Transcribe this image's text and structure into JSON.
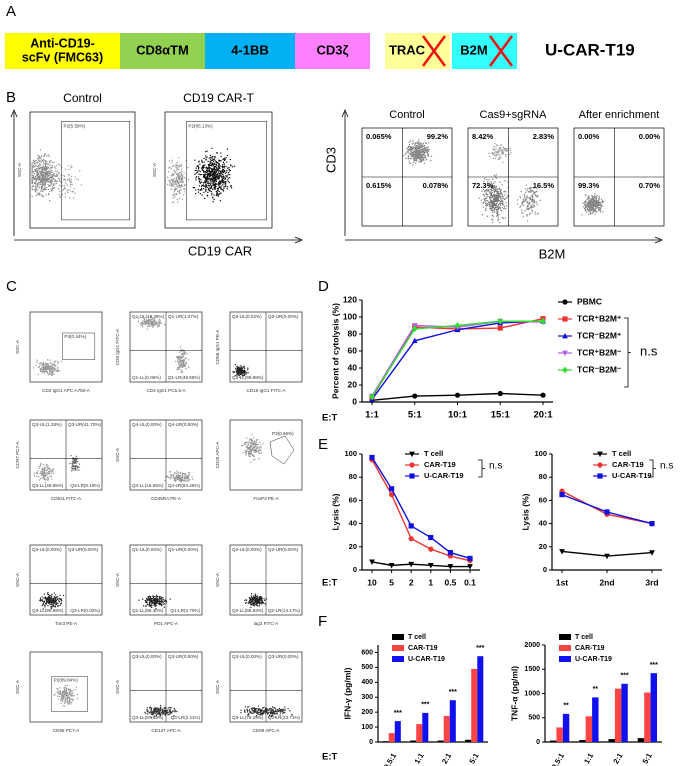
{
  "panels": {
    "A": {
      "label": "A",
      "construct": [
        [
          "Anti-CD19-",
          "scFv (FMC63)"
        ],
        "CD8αTM",
        "4-1BB",
        "CD3ζ"
      ],
      "knockout": [
        "TRAC",
        "B2M"
      ],
      "product": "U-CAR-T19"
    },
    "B": {
      "label": "B",
      "left": {
        "titles": [
          "Control",
          "CD19 CAR-T"
        ],
        "gates": [
          "P2(5.59%)",
          "P2(85.13%)"
        ],
        "ylabel": "SSC-A",
        "xlabel": "CD19 CAR"
      },
      "right": {
        "titles": [
          "Control",
          "Cas9+sgRNA",
          "After enrichment"
        ],
        "quadrants": [
          [
            "0.065%",
            "99.2%",
            "0.615%",
            "0.078%"
          ],
          [
            "8.42%",
            "2.83%",
            "72.3%",
            "16.5%"
          ],
          [
            "0.00%",
            "0.00%",
            "99.3%",
            "0.70%"
          ]
        ],
        "ylabel": "CD3",
        "xlabel": "B2M"
      }
    },
    "C": {
      "label": "C",
      "plots": [
        {
          "ylabel": "SSC-A",
          "xlabel": "CD3 IgG1 APC-A750-A",
          "gate": "P3(0.44%)"
        },
        {
          "ylabel": "CD8 IgG1 FITC-A",
          "xlabel": "CD4 IgG1 PC5.5-A",
          "quadrants": [
            "Q1-UL(49.36%)",
            "Q1-UR(1.07%)",
            "Q1-LL(0.06%)",
            "Q1-LR(48.58%)"
          ]
        },
        {
          "ylabel": "CD56 IgG1 PE-A",
          "xlabel": "CD19 IgG1 FITC-A",
          "quadrants": [
            "Q3-UL(0.02%)",
            "Q3-UR(0.00%)",
            "Q3-LL(99.98%)"
          ]
        },
        {
          "ylabel": "CCR7 PC7-A",
          "xlabel": "CD62L FITC-A",
          "quadrants": [
            "Q3-UL(1.28%)",
            "Q3-UR(41.70%)",
            "Q3-LL(48.85%)",
            "Q3-LR(8.18%)"
          ]
        },
        {
          "ylabel": "SSC-A",
          "xlabel": "CD45RA PE-A",
          "quadrants": [
            "Q4-UL(0.00%)",
            "Q4-UR(0.00%)",
            "Q4-LL(15.55%)",
            "Q4-LR(84.45%)"
          ]
        },
        {
          "ylabel": "CD25 APC-A",
          "xlabel": "FoxP3 PE-A",
          "gate": "P3(0.56%)"
        },
        {
          "ylabel": "SSC-A",
          "xlabel": "Tim3 PE-A",
          "quadrants": [
            "Q3-UL(0.00%)",
            "Q3-UR(0.00%)",
            "Q3-LL(99.98%)",
            "Q3-LR(0.02%)"
          ]
        },
        {
          "ylabel": "SSC-A",
          "xlabel": "PD1 APC-A",
          "quadrants": [
            "Q1-UL(0.00%)",
            "Q1-UR(0.00%)",
            "Q1-LL(96.30%)",
            "Q1-LR(3.70%)"
          ]
        },
        {
          "ylabel": "SSC-A",
          "xlabel": "lag3 FITC-A",
          "quadrants": [
            "Q2-UL(0.00%)",
            "Q2-UR(0.00%)",
            "Q2-LL(85.83%)",
            "Q2-LR(14.17%)"
          ]
        },
        {
          "ylabel": "SSC-A",
          "xlabel": "CD95 PC7-A",
          "gate": "P2(89.84%)"
        },
        {
          "ylabel": "SSC-A",
          "xlabel": "CD137 APC-A",
          "quadrants": [
            "Q3-UL(0.00%)",
            "Q3-UR(0.00%)",
            "Q3-LL(97.89%)",
            "Q3-LR(2.11%)"
          ]
        },
        {
          "ylabel": "SSC-A",
          "xlabel": "CD69 APC-A",
          "quadrants": [
            "Q3-UL(0.00%)",
            "Q3-UR(0.00%)",
            "Q3-LL(76.29%)",
            "Q3-LR(23.71%)"
          ]
        }
      ]
    },
    "D": {
      "label": "D"
    },
    "E": {
      "label": "E"
    },
    "F": {
      "label": "F"
    }
  },
  "chart_data": [
    {
      "type": "line",
      "ylabel": "Percent of cytolysis (%)",
      "xlabel": "E:T",
      "categories": [
        "1:1",
        "5:1",
        "10:1",
        "15:1",
        "20:1"
      ],
      "ylim": [
        0,
        120
      ],
      "yticks": [
        0,
        20,
        40,
        60,
        80,
        100,
        120
      ],
      "annotation": "n.s",
      "series": [
        {
          "name": "PBMC",
          "color": "#000000",
          "values": [
            2,
            7,
            8,
            10,
            8
          ]
        },
        {
          "name": "TCR⁺B2M⁺",
          "color": "#ee3333",
          "values": [
            5,
            88,
            86,
            87,
            98
          ]
        },
        {
          "name": "TCR⁻B2M⁺",
          "color": "#1010dd",
          "values": [
            3,
            72,
            85,
            93,
            95
          ]
        },
        {
          "name": "TCR⁺B2M⁻",
          "color": "#b060e0",
          "values": [
            7,
            90,
            88,
            95,
            94
          ]
        },
        {
          "name": "TCR⁻B2M⁻",
          "color": "#33dd33",
          "values": [
            6,
            86,
            90,
            95,
            95
          ]
        }
      ]
    },
    {
      "type": "line",
      "ylabel": "Lysis (%)",
      "xlabel": "E:T",
      "categories": [
        "10",
        "5",
        "2",
        "1",
        "0.5",
        "0.1"
      ],
      "ylim": [
        0,
        100
      ],
      "yticks": [
        0,
        20,
        40,
        60,
        80,
        100
      ],
      "annotation": "n.s",
      "series": [
        {
          "name": "T cell",
          "color": "#000000",
          "values": [
            7,
            4,
            5,
            4,
            3,
            3
          ]
        },
        {
          "name": "CAR-T19",
          "color": "#ee3333",
          "values": [
            95,
            65,
            27,
            18,
            12,
            8
          ]
        },
        {
          "name": "U-CAR-T19",
          "color": "#1010dd",
          "values": [
            97,
            70,
            38,
            28,
            15,
            10
          ]
        }
      ]
    },
    {
      "type": "line",
      "ylabel": "Lysis (%)",
      "categories": [
        "1st",
        "2nd",
        "3rd"
      ],
      "ylim": [
        0,
        100
      ],
      "yticks": [
        0,
        20,
        40,
        60,
        80,
        100
      ],
      "annotation": "n.s",
      "series": [
        {
          "name": "T cell",
          "color": "#000000",
          "values": [
            16,
            12,
            15
          ]
        },
        {
          "name": "CAR-T19",
          "color": "#ee3333",
          "values": [
            68,
            48,
            40
          ]
        },
        {
          "name": "U-CAR-T19",
          "color": "#1010dd",
          "values": [
            65,
            50,
            40
          ]
        }
      ]
    },
    {
      "type": "bar",
      "ylabel": "IFN-γ (pg/ml)",
      "xlabel": "E:T",
      "categories": [
        "0.5:1",
        "1:1",
        "2:1",
        "5:1"
      ],
      "ylim": [
        0,
        650
      ],
      "yticks": [
        0,
        100,
        200,
        300,
        400,
        500,
        600
      ],
      "annotations": [
        "***",
        "***",
        "***",
        "***"
      ],
      "series": [
        {
          "name": "T cell",
          "color": "#000000",
          "values": [
            5,
            10,
            10,
            15
          ]
        },
        {
          "name": "CAR-T19",
          "color": "#ff4444",
          "values": [
            60,
            120,
            175,
            490
          ]
        },
        {
          "name": "U-CAR-T19",
          "color": "#1111ee",
          "values": [
            140,
            195,
            280,
            575
          ]
        }
      ]
    },
    {
      "type": "bar",
      "ylabel": "TNF-α (pg/ml)",
      "categories": [
        "0.5:1",
        "1:1",
        "2:1",
        "5:1"
      ],
      "ylim": [
        0,
        2000
      ],
      "yticks": [
        0,
        500,
        1000,
        1500,
        2000
      ],
      "annotations": [
        "**",
        "**",
        "***",
        "***"
      ],
      "series": [
        {
          "name": "T cell",
          "color": "#000000",
          "values": [
            30,
            40,
            60,
            80
          ]
        },
        {
          "name": "CAR-T19",
          "color": "#ff4444",
          "values": [
            300,
            530,
            1100,
            1020
          ]
        },
        {
          "name": "U-CAR-T19",
          "color": "#1111ee",
          "values": [
            580,
            920,
            1200,
            1420
          ]
        }
      ]
    }
  ]
}
